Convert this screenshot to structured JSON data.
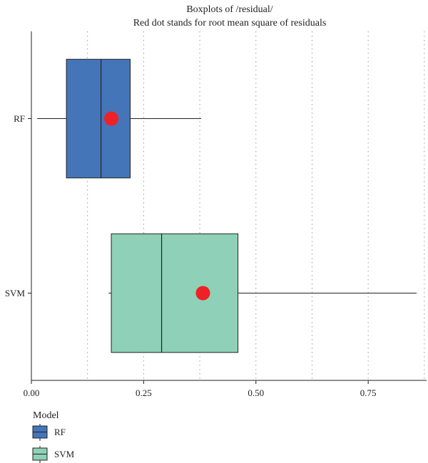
{
  "chart_data": {
    "type": "boxplot",
    "orientation": "horizontal",
    "title": "Boxplots of /residual/",
    "subtitle": "Red dot stands for root mean square of residuals",
    "xlabel": "",
    "ylabel": "",
    "xlim": [
      0,
      0.88
    ],
    "x_ticks": [
      0,
      0.25,
      0.5,
      0.75
    ],
    "x_tick_labels": [
      "0.00",
      "0.25",
      "0.50",
      "0.75"
    ],
    "grid_x": [
      0.125,
      0.25,
      0.375,
      0.5,
      0.625,
      0.75,
      0.875
    ],
    "grid_style": "dotted vertical",
    "categories": [
      "RF",
      "SVM"
    ],
    "series": [
      {
        "name": "RF",
        "color": "#4575b9",
        "whisker_low": 0.013,
        "q1": 0.078,
        "median": 0.155,
        "q3": 0.22,
        "whisker_high": 0.378,
        "rms": 0.178
      },
      {
        "name": "SVM",
        "color": "#8fd0b8",
        "whisker_low": 0.172,
        "q1": 0.178,
        "median": 0.29,
        "q3": 0.46,
        "whisker_high": 0.858,
        "rms": 0.382
      }
    ],
    "rms_color": "#ee2127",
    "legend": {
      "title": "Model",
      "position": "bottom-left",
      "entries": [
        "RF",
        "SVM"
      ]
    }
  }
}
